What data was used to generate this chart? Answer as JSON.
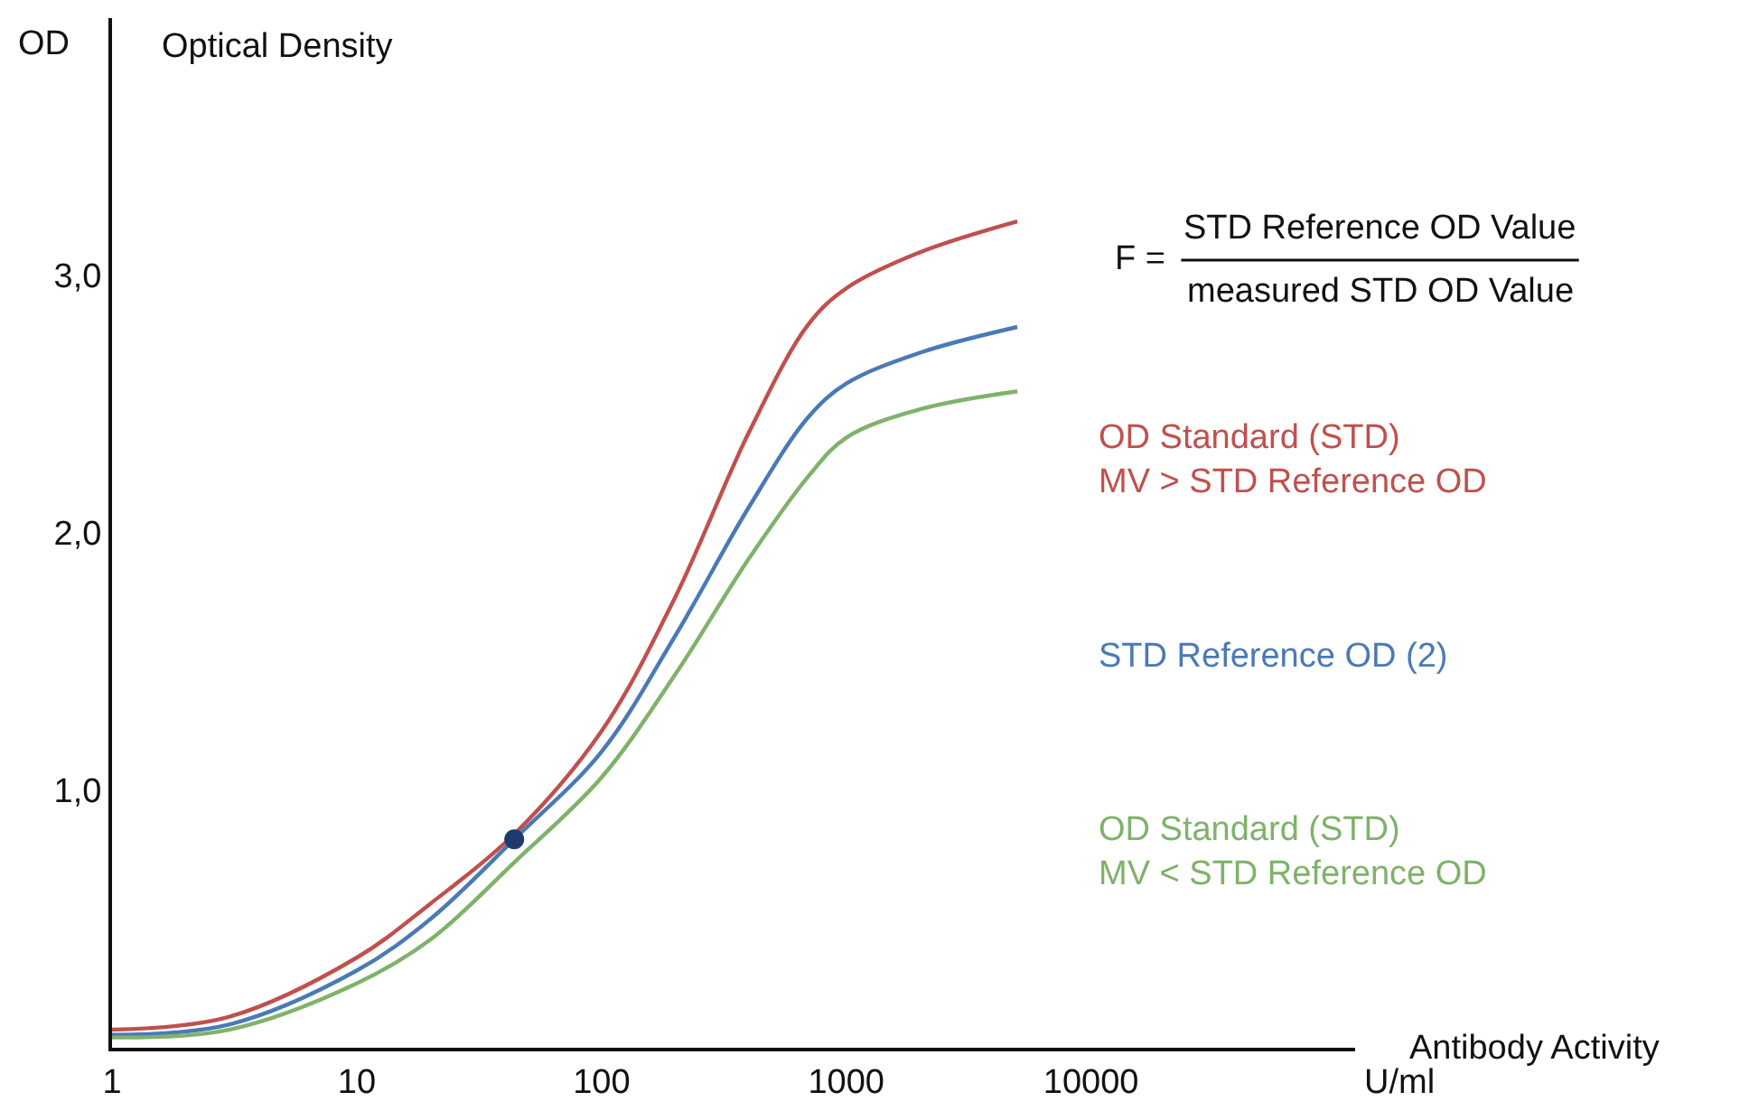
{
  "chart_data": {
    "type": "line",
    "title": "Optical Density",
    "ylabel": "OD",
    "xlabel": "Antibody Activity",
    "log": "x",
    "xlim": [
      1,
      120000
    ],
    "xticks": [
      1,
      10,
      100,
      1000,
      10000
    ],
    "ylim": [
      0,
      4
    ],
    "yticks": [
      {
        "value": 1,
        "label": "1,0"
      },
      {
        "value": 2,
        "label": "2,0"
      },
      {
        "value": 3,
        "label": "3,0"
      }
    ],
    "legend": false,
    "line_style": "solid",
    "x": [
      1,
      3,
      10,
      20,
      44,
      100,
      200,
      400,
      700,
      1000,
      2000,
      5000
    ],
    "series": [
      {
        "name": "OD Standard (STD)\nMV > STD Reference OD",
        "color": "#c0504d",
        "marker": "none",
        "values": [
          0.07,
          0.12,
          0.35,
          0.56,
          0.83,
          1.23,
          1.75,
          2.39,
          2.81,
          2.95,
          3.09,
          3.21
        ]
      },
      {
        "name": "STD Reference OD (2)",
        "color": "#4a7ab5",
        "marker": "none",
        "values": [
          0.05,
          0.09,
          0.3,
          0.5,
          0.81,
          1.15,
          1.6,
          2.1,
          2.45,
          2.58,
          2.7,
          2.8
        ]
      },
      {
        "name": "OD Standard (STD)\nMV < STD Reference OD",
        "color": "#7fb26a",
        "marker": "none",
        "values": [
          0.04,
          0.07,
          0.25,
          0.42,
          0.72,
          1.05,
          1.45,
          1.9,
          2.22,
          2.37,
          2.48,
          2.55
        ]
      },
      {
        "type": "scatter",
        "color": "#1f3a6e",
        "marker": "circle",
        "x": [
          44
        ],
        "values": [
          0.81
        ]
      }
    ],
    "annotations": [
      "U/ml",
      "F =",
      "STD Reference OD Value",
      "measured STD OD Value"
    ]
  }
}
